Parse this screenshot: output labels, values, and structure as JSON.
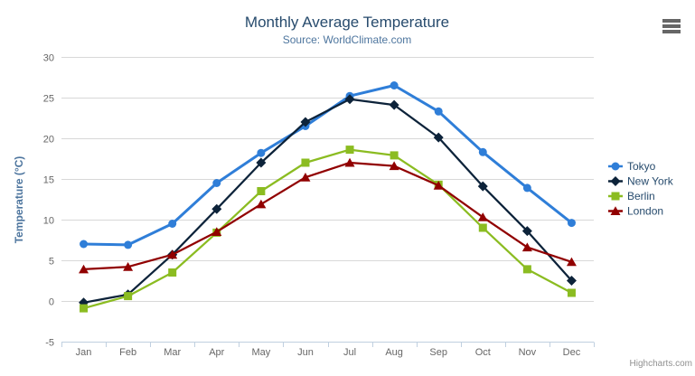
{
  "chart": {
    "credit": "Highcharts.com",
    "icons": {
      "menu": "hamburger-menu-icon"
    },
    "colors": {
      "title": "#274b6d",
      "subtitle": "#4d759e",
      "axis_title": "#4d759e",
      "axis_labels": "#666666",
      "grid_line": "#d8d8d8",
      "axis_line": "#c0d0e0",
      "credit": "#909090",
      "menu_icon": "#666666",
      "background": "#ffffff"
    }
  },
  "chart_data": {
    "type": "line",
    "title": "Monthly Average Temperature",
    "subtitle": "Source: WorldClimate.com",
    "xlabel": "",
    "ylabel": "Temperature (°C)",
    "categories": [
      "Jan",
      "Feb",
      "Mar",
      "Apr",
      "May",
      "Jun",
      "Jul",
      "Aug",
      "Sep",
      "Oct",
      "Nov",
      "Dec"
    ],
    "series": [
      {
        "name": "Tokyo",
        "color": "#2f7ed8",
        "marker": "circle",
        "values": [
          7.0,
          6.9,
          9.5,
          14.5,
          18.2,
          21.5,
          25.2,
          26.5,
          23.3,
          18.3,
          13.9,
          9.6
        ]
      },
      {
        "name": "New York",
        "color": "#0d233a",
        "marker": "diamond",
        "values": [
          -0.2,
          0.8,
          5.7,
          11.3,
          17.0,
          22.0,
          24.8,
          24.1,
          20.1,
          14.1,
          8.6,
          2.5
        ]
      },
      {
        "name": "Berlin",
        "color": "#8bbc21",
        "marker": "square",
        "values": [
          -0.9,
          0.6,
          3.5,
          8.4,
          13.5,
          17.0,
          18.6,
          17.9,
          14.3,
          9.0,
          3.9,
          1.0
        ]
      },
      {
        "name": "London",
        "color": "#910000",
        "marker": "triangle",
        "values": [
          3.9,
          4.2,
          5.7,
          8.5,
          11.9,
          15.2,
          17.0,
          16.6,
          14.2,
          10.3,
          6.6,
          4.8
        ]
      }
    ],
    "ylim": [
      -5,
      30
    ],
    "y_ticks": [
      -5,
      0,
      5,
      10,
      15,
      20,
      25,
      30
    ],
    "grid": true,
    "legend_position": "right"
  }
}
